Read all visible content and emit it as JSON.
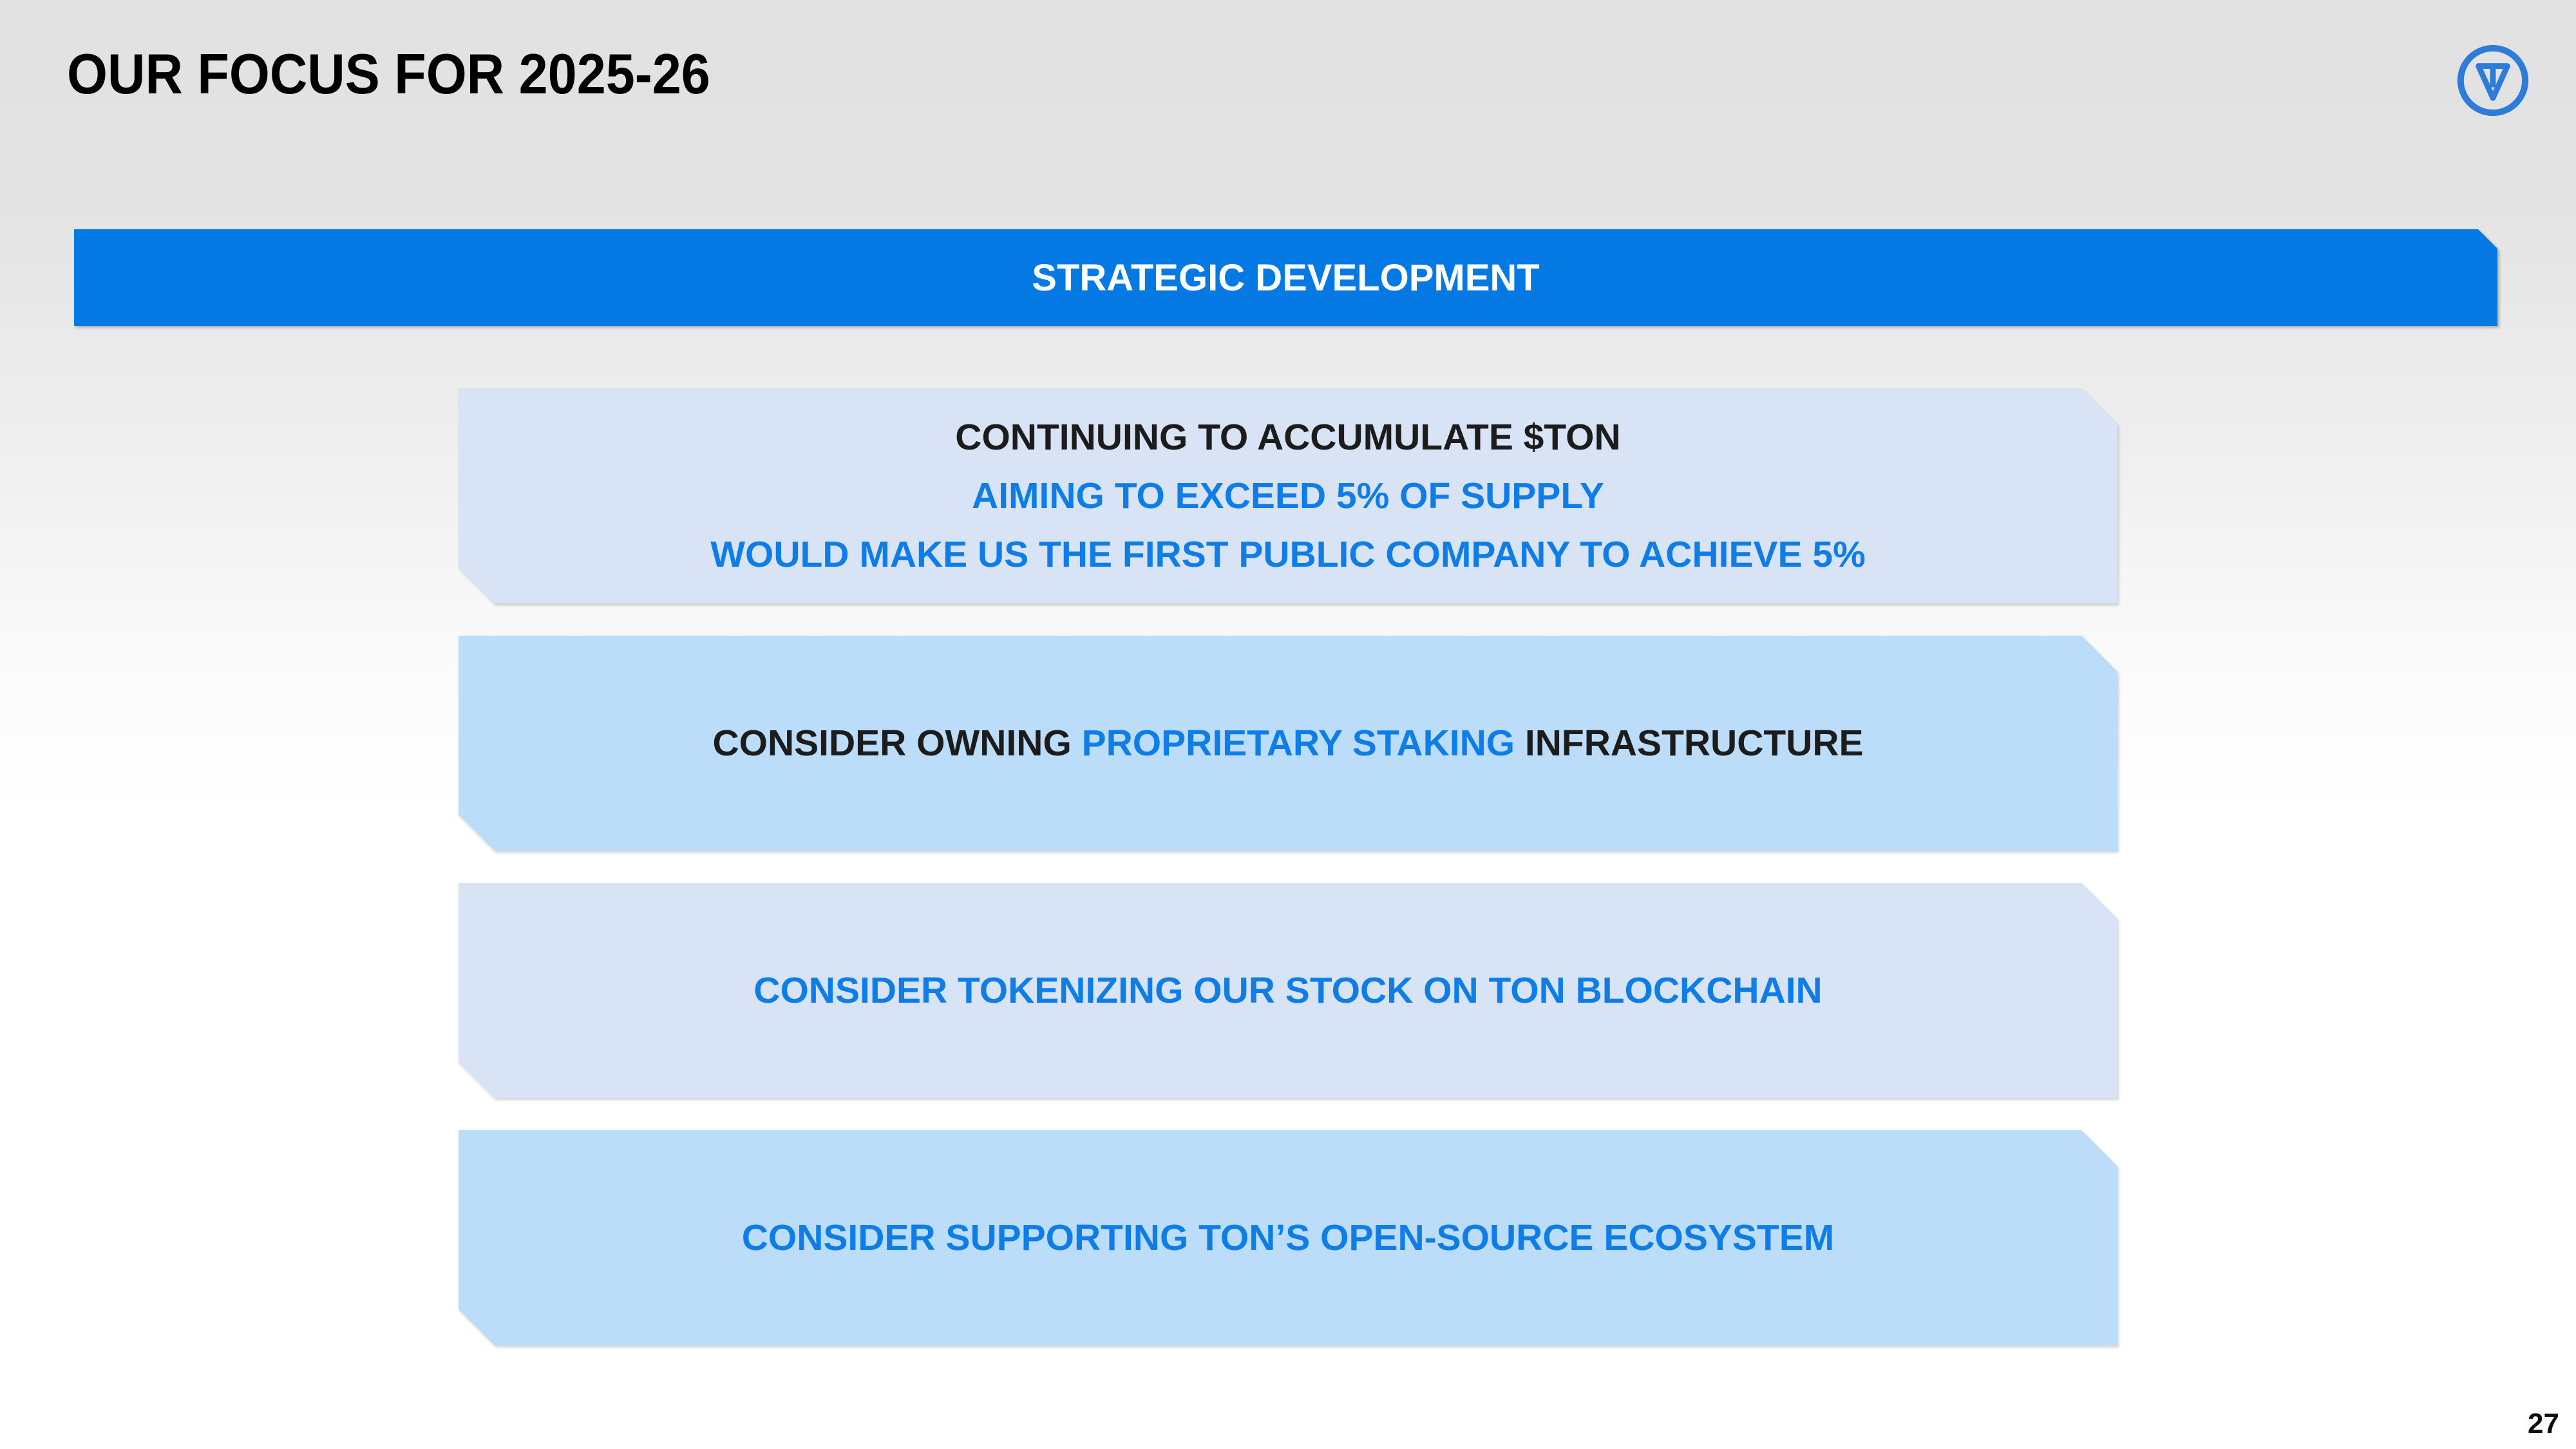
{
  "slide": {
    "title": "OUR FOCUS FOR 2025-26",
    "page_number": "27",
    "banner": {
      "label": "STRATEGIC DEVELOPMENT"
    },
    "boxes": [
      {
        "variant": "periwinkle",
        "lines": [
          {
            "segments": [
              {
                "text": "CONTINUING TO ACCUMULATE $TON",
                "color": "dark"
              }
            ]
          },
          {
            "segments": [
              {
                "text": "AIMING TO EXCEED 5% OF SUPPLY",
                "color": "blue"
              }
            ]
          },
          {
            "segments": [
              {
                "text": "WOULD MAKE US THE FIRST PUBLIC COMPANY TO ACHIEVE 5%",
                "color": "blue"
              }
            ]
          }
        ]
      },
      {
        "variant": "sky",
        "lines": [
          {
            "segments": [
              {
                "text": "CONSIDER OWNING ",
                "color": "dark"
              },
              {
                "text": "PROPRIETARY STAKING",
                "color": "blue"
              },
              {
                "text": " INFRASTRUCTURE",
                "color": "dark"
              }
            ]
          }
        ]
      },
      {
        "variant": "periwinkle",
        "lines": [
          {
            "segments": [
              {
                "text": "CONSIDER TOKENIZING OUR STOCK ON TON BLOCKCHAIN",
                "color": "blue"
              }
            ]
          }
        ]
      },
      {
        "variant": "sky",
        "lines": [
          {
            "segments": [
              {
                "text": "CONSIDER SUPPORTING TON’S OPEN-SOURCE ECOSYSTEM",
                "color": "blue"
              }
            ]
          }
        ]
      }
    ],
    "logo_icon": "ton-logo",
    "colors": {
      "banner-blue": "#0478e3",
      "text-blue": "#0f7de8",
      "box-light": "#d9e3f6",
      "box-sky": "#bcddfa",
      "logo-blue": "#2e7cd9",
      "dark-text": "#1c1c1c"
    }
  }
}
